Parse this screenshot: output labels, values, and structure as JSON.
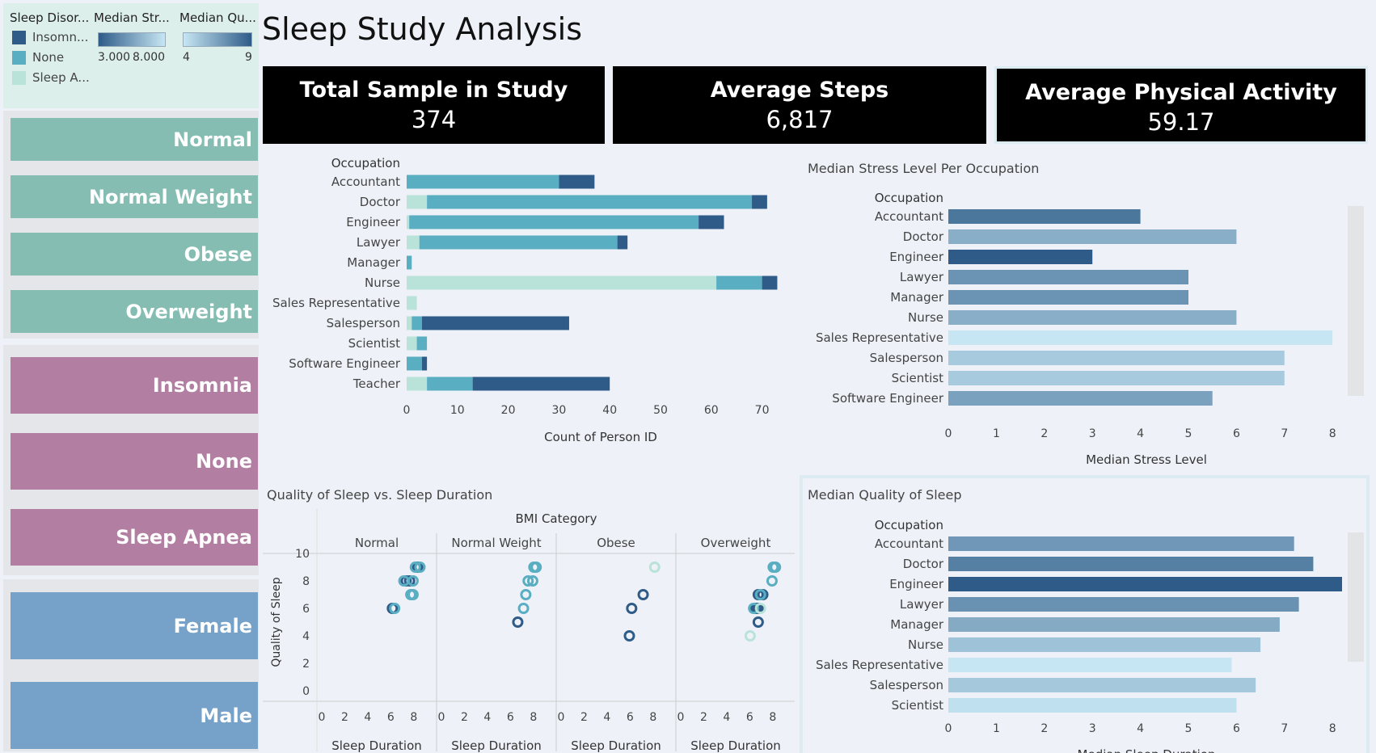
{
  "colors": {
    "insomnia": "#2e5b88",
    "none": "#5aaec2",
    "sleep_apnea": "#b9e3d8",
    "teal_btn": "#85bdb2",
    "mauve_btn": "#b27ea2",
    "blue_btn": "#76a2c9"
  },
  "legend": {
    "sleep_disorder": {
      "header": "Sleep Disor...",
      "items": [
        {
          "label": "Insomn...",
          "color": "#2e5b88"
        },
        {
          "label": "None",
          "color": "#5aaec2"
        },
        {
          "label": "Sleep A...",
          "color": "#b9e3d8"
        }
      ]
    },
    "median_stress": {
      "header": "Median Str...",
      "min": "3.000",
      "max": "8.000"
    },
    "median_quality": {
      "header": "Median Qu...",
      "min": "4",
      "max": "9"
    }
  },
  "filters": {
    "bmi": [
      "Normal",
      "Normal Weight",
      "Obese",
      "Overweight"
    ],
    "disorder": [
      "Insomnia",
      "None",
      "Sleep Apnea"
    ],
    "gender": [
      "Female",
      "Male"
    ]
  },
  "title": "Sleep Study Analysis",
  "kpis": [
    {
      "label": "Total Sample in Study",
      "value": "374"
    },
    {
      "label": "Average Steps",
      "value": "6,817"
    },
    {
      "label": "Average Physical Activity",
      "value": "59.17"
    }
  ],
  "chart_data": [
    {
      "type": "bar",
      "orientation": "horizontal-stacked",
      "row_header": "Occupation",
      "xlabel": "Count of Person ID",
      "xlim": [
        0,
        75
      ],
      "xticks": [
        0,
        10,
        20,
        30,
        40,
        50,
        60,
        70
      ],
      "categories": [
        "Accountant",
        "Doctor",
        "Engineer",
        "Lawyer",
        "Manager",
        "Nurse",
        "Sales Representative",
        "Salesperson",
        "Scientist",
        "Software Engineer",
        "Teacher"
      ],
      "series": [
        {
          "name": "Sleep Apnea",
          "values": [
            0,
            4,
            0.5,
            2.5,
            0,
            61,
            2,
            1,
            2,
            0,
            4
          ]
        },
        {
          "name": "None",
          "values": [
            30,
            64,
            57,
            39,
            1,
            9,
            0,
            2,
            2,
            3,
            9
          ]
        },
        {
          "name": "Insomnia",
          "values": [
            7,
            3,
            5,
            2,
            0,
            3,
            0,
            29,
            0,
            1,
            27
          ]
        }
      ]
    },
    {
      "type": "bar",
      "orientation": "horizontal",
      "title": "Median Stress Level Per Occupation",
      "row_header": "Occupation",
      "xlabel": "Median Stress Level",
      "xlim": [
        0,
        8.3
      ],
      "xticks": [
        0,
        1,
        2,
        3,
        4,
        5,
        6,
        7,
        8
      ],
      "categories": [
        "Accountant",
        "Doctor",
        "Engineer",
        "Lawyer",
        "Manager",
        "Nurse",
        "Sales Representative",
        "Salesperson",
        "Scientist",
        "Software Engineer"
      ],
      "values": [
        4,
        6,
        3,
        5,
        5,
        6,
        8,
        7,
        7,
        5.5
      ]
    },
    {
      "type": "scatter",
      "title": "Quality of Sleep vs. Sleep Duration",
      "facet_header": "BMI Category",
      "facets": [
        "Normal",
        "Normal Weight",
        "Obese",
        "Overweight"
      ],
      "xlabel": "Sleep Duration",
      "ylabel": "Quality of Sleep",
      "xlim": [
        0,
        9
      ],
      "xticks": [
        0,
        2,
        4,
        6,
        8
      ],
      "ylim": [
        0,
        10
      ],
      "yticks": [
        0,
        2,
        4,
        6,
        8,
        10
      ],
      "points": [
        [
          {
            "x": 8.2,
            "y": 9,
            "c": "insomnia"
          },
          {
            "x": 8.4,
            "y": 9,
            "c": "none"
          },
          {
            "x": 8.0,
            "y": 9,
            "c": "none"
          },
          {
            "x": 7.2,
            "y": 8,
            "c": "insomnia"
          },
          {
            "x": 7.5,
            "y": 8,
            "c": "insomnia"
          },
          {
            "x": 7.8,
            "y": 8,
            "c": "none"
          },
          {
            "x": 7.0,
            "y": 8,
            "c": "none"
          },
          {
            "x": 7.8,
            "y": 7,
            "c": "none"
          },
          {
            "x": 7.6,
            "y": 7,
            "c": "none"
          },
          {
            "x": 6.0,
            "y": 6,
            "c": "insomnia"
          },
          {
            "x": 6.2,
            "y": 6,
            "c": "none"
          }
        ],
        [
          {
            "x": 7.9,
            "y": 9,
            "c": "none"
          },
          {
            "x": 8.1,
            "y": 9,
            "c": "none"
          },
          {
            "x": 7.4,
            "y": 8,
            "c": "none"
          },
          {
            "x": 7.8,
            "y": 8,
            "c": "none"
          },
          {
            "x": 7.2,
            "y": 7,
            "c": "none"
          },
          {
            "x": 7.0,
            "y": 6,
            "c": "none"
          },
          {
            "x": 6.5,
            "y": 5,
            "c": "insomnia"
          }
        ],
        [
          {
            "x": 8.0,
            "y": 9,
            "c": "sleep_apnea"
          },
          {
            "x": 7.0,
            "y": 7,
            "c": "insomnia"
          },
          {
            "x": 6.0,
            "y": 6,
            "c": "insomnia"
          },
          {
            "x": 5.8,
            "y": 4,
            "c": "insomnia"
          }
        ],
        [
          {
            "x": 8.1,
            "y": 9,
            "c": "none"
          },
          {
            "x": 7.9,
            "y": 9,
            "c": "none"
          },
          {
            "x": 7.8,
            "y": 8,
            "c": "none"
          },
          {
            "x": 6.6,
            "y": 7,
            "c": "insomnia"
          },
          {
            "x": 7.0,
            "y": 7,
            "c": "insomnia"
          },
          {
            "x": 6.8,
            "y": 7,
            "c": "none"
          },
          {
            "x": 6.4,
            "y": 6,
            "c": "insomnia"
          },
          {
            "x": 6.6,
            "y": 6,
            "c": "insomnia"
          },
          {
            "x": 6.2,
            "y": 6,
            "c": "none"
          },
          {
            "x": 6.8,
            "y": 6,
            "c": "sleep_apnea"
          },
          {
            "x": 6.6,
            "y": 5,
            "c": "insomnia"
          },
          {
            "x": 5.9,
            "y": 4,
            "c": "sleep_apnea"
          }
        ]
      ]
    },
    {
      "type": "bar",
      "orientation": "horizontal",
      "title": "Median Quality of Sleep",
      "row_header": "Occupation",
      "xlabel": "Median Sleep Duration",
      "xlim": [
        0,
        8.3
      ],
      "xticks": [
        0,
        1,
        2,
        3,
        4,
        5,
        6,
        7,
        8
      ],
      "categories": [
        "Accountant",
        "Doctor",
        "Engineer",
        "Lawyer",
        "Manager",
        "Nurse",
        "Sales Representative",
        "Salesperson",
        "Scientist"
      ],
      "values": [
        7.2,
        7.6,
        8.2,
        7.3,
        6.9,
        6.5,
        5.9,
        6.4,
        6.0
      ]
    }
  ]
}
